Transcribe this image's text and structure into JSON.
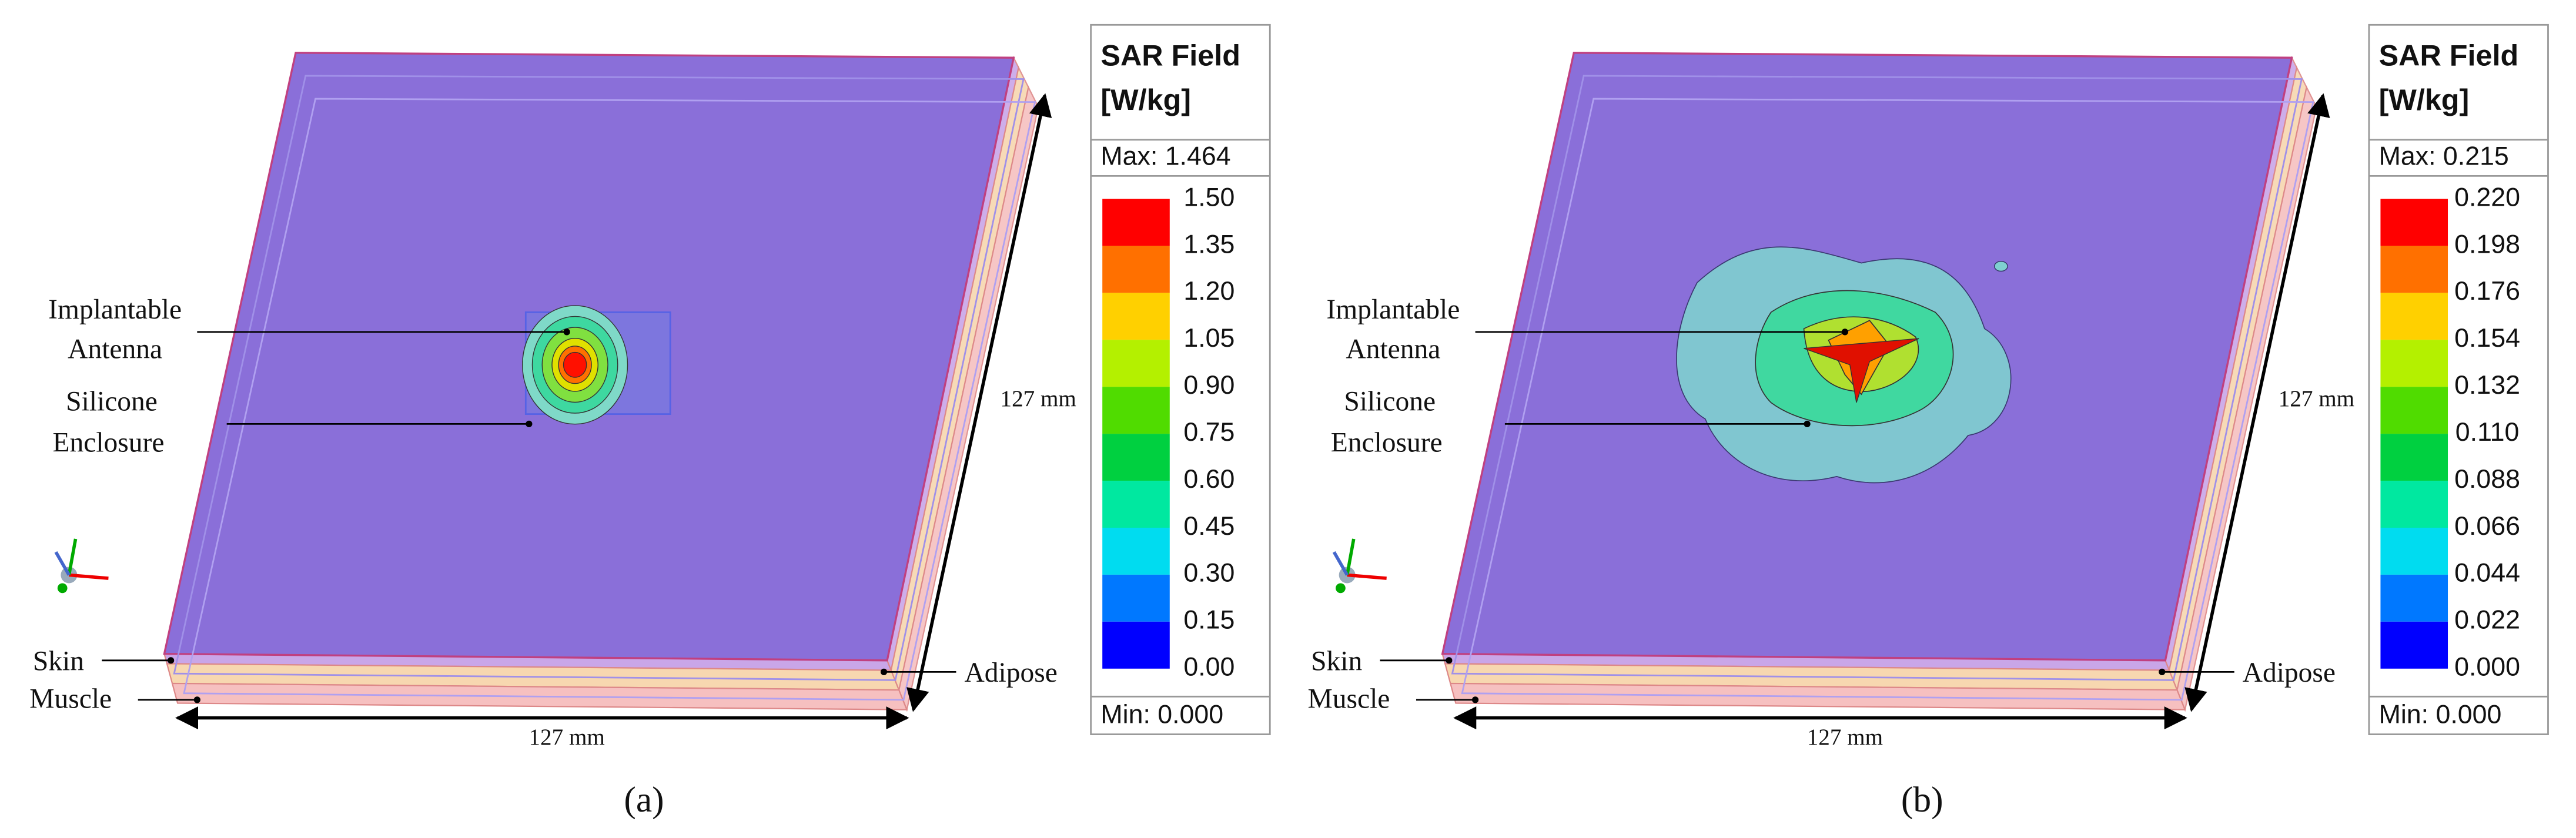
{
  "panels": [
    {
      "caption": "(a)",
      "labels": {
        "antenna": [
          "Implantable",
          "Antenna"
        ],
        "enclosure": [
          "Silicone",
          "Enclosure"
        ],
        "skin": "Skin",
        "muscle": "Muscle",
        "adipose": "Adipose",
        "width": "127 mm",
        "depth": "127 mm"
      },
      "legend": {
        "title": [
          "SAR Field",
          "[W/kg]"
        ],
        "max": "Max: 1.464",
        "min": "Min: 0.000",
        "ticks": [
          "1.50",
          "1.35",
          "1.20",
          "1.05",
          "0.90",
          "0.75",
          "0.60",
          "0.45",
          "0.30",
          "0.15",
          "0.00"
        ]
      }
    },
    {
      "caption": "(b)",
      "labels": {
        "antenna": [
          "Implantable",
          "Antenna"
        ],
        "enclosure": [
          "Silicone",
          "Enclosure"
        ],
        "skin": "Skin",
        "muscle": "Muscle",
        "adipose": "Adipose",
        "width": "127 mm",
        "depth": "127 mm"
      },
      "legend": {
        "title": [
          "SAR Field",
          "[W/kg]"
        ],
        "max": "Max: 0.215",
        "min": "Min: 0.000",
        "ticks": [
          "0.220",
          "0.198",
          "0.176",
          "0.154",
          "0.132",
          "0.110",
          "0.088",
          "0.066",
          "0.044",
          "0.022",
          "0.000"
        ]
      }
    }
  ],
  "scale_colors": [
    "#ff0000",
    "#ff7000",
    "#ffd000",
    "#b4f000",
    "#50dc00",
    "#00d040",
    "#00e8a0",
    "#00dcf0",
    "#0078ff",
    "#0000ff"
  ]
}
